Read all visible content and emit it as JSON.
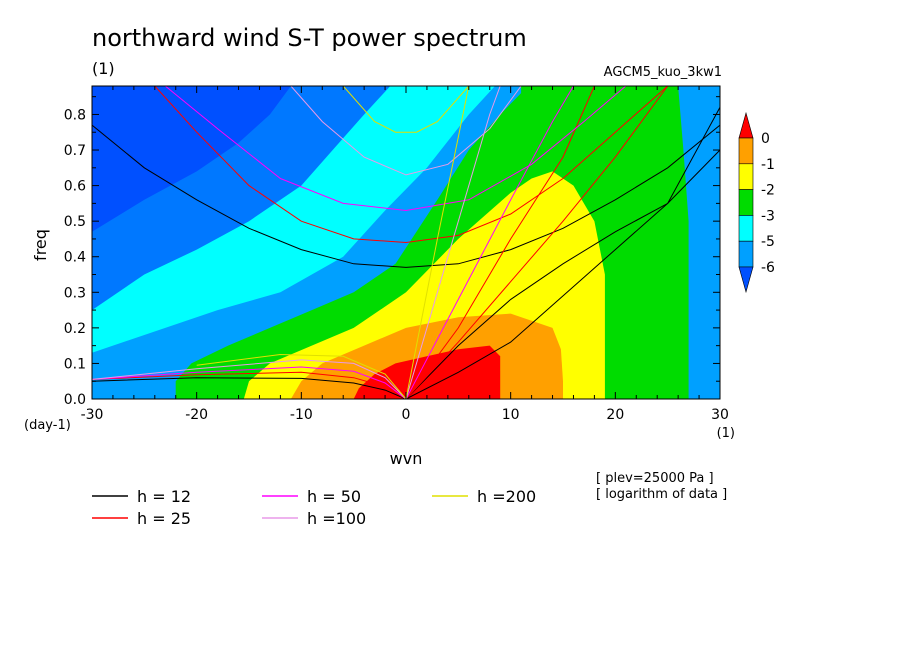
{
  "chart_data": {
    "type": "heatmap",
    "title": "northward wind S-T power spectrum",
    "title_units": "(1)",
    "experiment": "AGCM5_kuo_3kw1",
    "xlabel": "wvn",
    "xunits": "(1)",
    "ylabel": "freq",
    "yunits": "(day-1)",
    "xlim": [
      -30,
      30
    ],
    "ylim": [
      0,
      0.88
    ],
    "xticks": [
      -30,
      -20,
      -10,
      0,
      10,
      20,
      30
    ],
    "xtick_labels": [
      "-30",
      "-20",
      "-10",
      "0",
      "10",
      "20",
      "30"
    ],
    "yticks": [
      0,
      0.1,
      0.2,
      0.3,
      0.4,
      0.5,
      0.6,
      0.7,
      0.8
    ],
    "ytick_labels": [
      "0.0",
      "0.1",
      "0.2",
      "0.3",
      "0.4",
      "0.5",
      "0.6",
      "0.7",
      "0.8"
    ],
    "notes": [
      "[ plev=25000 Pa ]",
      "[ logarithm of data ]"
    ],
    "colorbar": {
      "levels": [
        -6,
        -5,
        -3,
        -2,
        -1,
        0
      ],
      "level_labels": [
        "-6",
        "-5",
        "-3",
        "-2",
        "-1",
        "0"
      ],
      "colors": [
        "#0050ff",
        "#00a0ff",
        "#00ffff",
        "#00dc00",
        "#ffff00",
        "#ffa000",
        "#ff0000"
      ]
    },
    "contours": [
      {
        "level": -2,
        "points": [
          [
            -5,
            0
          ],
          [
            -4.5,
            0.03
          ],
          [
            -3,
            0.07
          ],
          [
            -1,
            0.1
          ],
          [
            2,
            0.12
          ],
          [
            5,
            0.14
          ],
          [
            8,
            0.15
          ],
          [
            9,
            0.12
          ],
          [
            9,
            0.06
          ],
          [
            9,
            0
          ]
        ]
      },
      {
        "level": -1,
        "points": [
          [
            -11,
            0
          ],
          [
            -10,
            0.05
          ],
          [
            -8,
            0.1
          ],
          [
            -4,
            0.15
          ],
          [
            0,
            0.2
          ],
          [
            5,
            0.23
          ],
          [
            10,
            0.24
          ],
          [
            14,
            0.2
          ],
          [
            14.8,
            0.14
          ],
          [
            15,
            0.05
          ],
          [
            15,
            0
          ]
        ]
      },
      {
        "level": 0,
        "points": [
          [
            -15.5,
            0
          ],
          [
            -15,
            0.05
          ],
          [
            -13,
            0.1
          ],
          [
            -9,
            0.15
          ],
          [
            -5,
            0.2
          ],
          [
            0,
            0.3
          ],
          [
            5,
            0.45
          ],
          [
            10,
            0.58
          ],
          [
            12,
            0.62
          ],
          [
            14,
            0.64
          ],
          [
            16,
            0.6
          ],
          [
            18,
            0.5
          ],
          [
            19,
            0.35
          ],
          [
            19,
            0.15
          ],
          [
            19,
            0
          ]
        ]
      },
      {
        "level": 1,
        "points": [
          [
            -22,
            0
          ],
          [
            -22,
            0.05
          ],
          [
            -20.5,
            0.1
          ],
          [
            -17,
            0.15
          ],
          [
            -13,
            0.2
          ],
          [
            -9,
            0.25
          ],
          [
            -5,
            0.3
          ],
          [
            -1,
            0.38
          ],
          [
            3,
            0.56
          ],
          [
            6,
            0.7
          ],
          [
            9,
            0.8
          ],
          [
            11,
            0.86
          ],
          [
            11,
            0.88
          ],
          [
            26,
            0.88
          ],
          [
            26.5,
            0.7
          ],
          [
            27,
            0.5
          ],
          [
            27,
            0
          ]
        ]
      },
      {
        "level": 2,
        "points": [
          [
            -30,
            0
          ],
          [
            -30,
            0.13
          ],
          [
            -25,
            0.18
          ],
          [
            -18,
            0.25
          ],
          [
            -12,
            0.3
          ],
          [
            -6,
            0.4
          ],
          [
            -2,
            0.53
          ],
          [
            2,
            0.65
          ],
          [
            6,
            0.8
          ],
          [
            8.5,
            0.88
          ],
          [
            30,
            0.88
          ],
          [
            30,
            0
          ]
        ]
      },
      {
        "level": 3,
        "points": [
          [
            -30,
            0.25
          ],
          [
            -25,
            0.35
          ],
          [
            -20,
            0.42
          ],
          [
            -15,
            0.5
          ],
          [
            -10,
            0.6
          ],
          [
            -7,
            0.7
          ],
          [
            -4,
            0.8
          ],
          [
            -1.5,
            0.88
          ],
          [
            -30,
            0.88
          ]
        ]
      },
      {
        "level": 4,
        "points": [
          [
            -30,
            0.47
          ],
          [
            -25,
            0.56
          ],
          [
            -20,
            0.64
          ],
          [
            -16,
            0.72
          ],
          [
            -13,
            0.8
          ],
          [
            -11,
            0.88
          ],
          [
            -30,
            0.88
          ]
        ]
      }
    ],
    "series": [
      {
        "name": "h = 12",
        "color": "#000000"
      },
      {
        "name": "h = 25",
        "color": "#ff0000"
      },
      {
        "name": "h = 50",
        "color": "#ff00ff"
      },
      {
        "name": "h =100",
        "color": "#e89ae8"
      },
      {
        "name": "h =200",
        "color": "#e0e000"
      }
    ],
    "dispersion_curves": [
      {
        "h": 12,
        "color": "#000000",
        "points": [
          [
            -30,
            0.77
          ],
          [
            -25,
            0.65
          ],
          [
            -20,
            0.56
          ],
          [
            -15,
            0.48
          ],
          [
            -10,
            0.42
          ],
          [
            -5,
            0.38
          ],
          [
            0,
            0.37
          ],
          [
            5,
            0.38
          ],
          [
            10,
            0.42
          ],
          [
            15,
            0.48
          ],
          [
            20,
            0.56
          ],
          [
            25,
            0.65
          ],
          [
            30,
            0.77
          ]
        ]
      },
      {
        "h": 12,
        "color": "#000000",
        "points": [
          [
            -30,
            0.05
          ],
          [
            -20,
            0.06
          ],
          [
            -10,
            0.058
          ],
          [
            -5,
            0.045
          ],
          [
            -2,
            0.025
          ],
          [
            0,
            0
          ]
        ]
      },
      {
        "h": 12,
        "color": "#000000",
        "points": [
          [
            0,
            0
          ],
          [
            5,
            0.075
          ],
          [
            10,
            0.16
          ],
          [
            15,
            0.29
          ],
          [
            20,
            0.42
          ],
          [
            25,
            0.55
          ],
          [
            30,
            0.7
          ]
        ]
      },
      {
        "h": 12,
        "color": "#000000",
        "points": [
          [
            0,
            0
          ],
          [
            5,
            0.15
          ],
          [
            10,
            0.28
          ],
          [
            15,
            0.38
          ],
          [
            20,
            0.47
          ],
          [
            25,
            0.55
          ],
          [
            30,
            0.82
          ]
        ]
      },
      {
        "h": 25,
        "color": "#ff0000",
        "points": [
          [
            -24,
            0.88
          ],
          [
            -20,
            0.75
          ],
          [
            -15,
            0.6
          ],
          [
            -10,
            0.5
          ],
          [
            -5,
            0.45
          ],
          [
            0,
            0.44
          ],
          [
            5,
            0.46
          ],
          [
            10,
            0.52
          ],
          [
            15,
            0.62
          ],
          [
            20,
            0.75
          ],
          [
            25,
            0.88
          ]
        ]
      },
      {
        "h": 25,
        "color": "#ff0000",
        "points": [
          [
            -30,
            0.055
          ],
          [
            -20,
            0.068
          ],
          [
            -10,
            0.075
          ],
          [
            -5,
            0.06
          ],
          [
            -2,
            0.035
          ],
          [
            0,
            0
          ]
        ]
      },
      {
        "h": 25,
        "color": "#ff0000",
        "points": [
          [
            0,
            0
          ],
          [
            5,
            0.16
          ],
          [
            10,
            0.33
          ],
          [
            15,
            0.5
          ],
          [
            20,
            0.68
          ],
          [
            25,
            0.88
          ]
        ]
      },
      {
        "h": 25,
        "color": "#ff0000",
        "points": [
          [
            0,
            0
          ],
          [
            5,
            0.2
          ],
          [
            10,
            0.45
          ],
          [
            15,
            0.68
          ],
          [
            18,
            0.88
          ]
        ]
      },
      {
        "h": 50,
        "color": "#ff00ff",
        "points": [
          [
            -23,
            0.88
          ],
          [
            -18,
            0.76
          ],
          [
            -12,
            0.62
          ],
          [
            -6,
            0.55
          ],
          [
            0,
            0.53
          ],
          [
            6,
            0.56
          ],
          [
            12,
            0.66
          ],
          [
            17,
            0.78
          ],
          [
            21,
            0.88
          ]
        ]
      },
      {
        "h": 50,
        "color": "#ff00ff",
        "points": [
          [
            -30,
            0.055
          ],
          [
            -20,
            0.075
          ],
          [
            -10,
            0.09
          ],
          [
            -5,
            0.078
          ],
          [
            -2,
            0.045
          ],
          [
            0,
            0
          ]
        ]
      },
      {
        "h": 50,
        "color": "#ff00ff",
        "points": [
          [
            0,
            0
          ],
          [
            5,
            0.28
          ],
          [
            10,
            0.56
          ],
          [
            14,
            0.78
          ],
          [
            16,
            0.88
          ]
        ]
      },
      {
        "h": 100,
        "color": "#e89ae8",
        "points": [
          [
            -11,
            0.88
          ],
          [
            -8,
            0.78
          ],
          [
            -4,
            0.68
          ],
          [
            0,
            0.63
          ],
          [
            4,
            0.66
          ],
          [
            8,
            0.76
          ],
          [
            11,
            0.88
          ]
        ]
      },
      {
        "h": 100,
        "color": "#e89ae8",
        "points": [
          [
            -30,
            0.055
          ],
          [
            -20,
            0.085
          ],
          [
            -10,
            0.11
          ],
          [
            -5,
            0.1
          ],
          [
            -2,
            0.06
          ],
          [
            0,
            0
          ]
        ]
      },
      {
        "h": 100,
        "color": "#e89ae8",
        "points": [
          [
            0,
            0
          ],
          [
            4,
            0.4
          ],
          [
            8,
            0.8
          ],
          [
            9,
            0.88
          ]
        ]
      },
      {
        "h": 200,
        "color": "#e0e000",
        "points": [
          [
            -6,
            0.88
          ],
          [
            -3,
            0.78
          ],
          [
            -1,
            0.75
          ],
          [
            1,
            0.75
          ],
          [
            3,
            0.78
          ],
          [
            6,
            0.88
          ]
        ]
      },
      {
        "h": 200,
        "color": "#e0e000",
        "points": [
          [
            -20,
            0.095
          ],
          [
            -12,
            0.125
          ],
          [
            -6,
            0.12
          ],
          [
            -2,
            0.07
          ],
          [
            0,
            0
          ]
        ]
      },
      {
        "h": 200,
        "color": "#e0e000",
        "points": [
          [
            0,
            0
          ],
          [
            3,
            0.45
          ],
          [
            6,
            0.88
          ]
        ]
      }
    ]
  }
}
